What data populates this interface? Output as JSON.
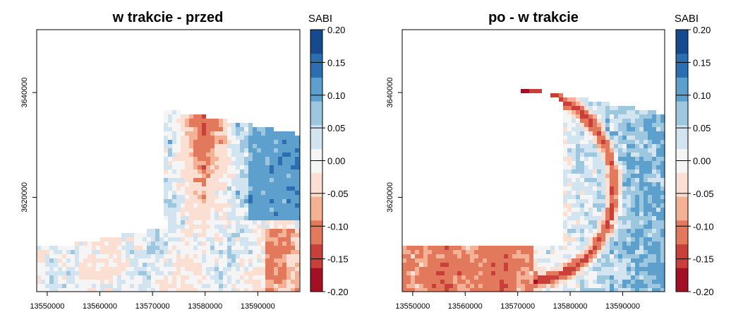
{
  "palette": [
    "#a50f26",
    "#c9403b",
    "#e3795c",
    "#f4b195",
    "#fbdfd3",
    "#f5f5f5",
    "#d2e4f0",
    "#9dc7df",
    "#5d9fcd",
    "#2c6fb0",
    "#154a8f"
  ],
  "chart_data": [
    {
      "type": "heatmap",
      "title": "w trakcie - przed",
      "legend_title": "SABI",
      "xlim": [
        13548000,
        13598000
      ],
      "ylim": [
        3602000,
        3652000
      ],
      "x_ticks": [
        13550000,
        13560000,
        13570000,
        13580000,
        13590000
      ],
      "x_tick_labels": [
        "13550000",
        "13560000",
        "13570000",
        "13580000",
        "13590000"
      ],
      "y_ticks": [
        3620000,
        3640000
      ],
      "y_tick_labels": [
        "3620000",
        "3640000"
      ],
      "color_breaks": [
        -0.2,
        -0.15,
        -0.1,
        -0.05,
        0.0,
        0.05,
        0.1,
        0.15,
        0.2
      ],
      "legend_labels": [
        "0.20",
        "0.15",
        "0.10",
        "0.05",
        "0.00",
        "-0.05",
        "-0.10",
        "-0.15",
        "-0.20"
      ]
    },
    {
      "type": "heatmap",
      "title": "po - w trakcie",
      "legend_title": "SABI",
      "xlim": [
        13548000,
        13598000
      ],
      "ylim": [
        3602000,
        3652000
      ],
      "x_ticks": [
        13550000,
        13560000,
        13570000,
        13580000,
        13590000
      ],
      "x_tick_labels": [
        "13550000",
        "13560000",
        "13570000",
        "13580000",
        "13590000"
      ],
      "y_ticks": [
        3620000,
        3640000
      ],
      "y_tick_labels": [
        "3620000",
        "3640000"
      ],
      "color_breaks": [
        -0.2,
        -0.15,
        -0.1,
        -0.05,
        0.0,
        0.05,
        0.1,
        0.15,
        0.2
      ],
      "legend_labels": [
        "0.20",
        "0.15",
        "0.10",
        "0.05",
        "0.00",
        "-0.05",
        "-0.10",
        "-0.15",
        "-0.20"
      ]
    }
  ]
}
